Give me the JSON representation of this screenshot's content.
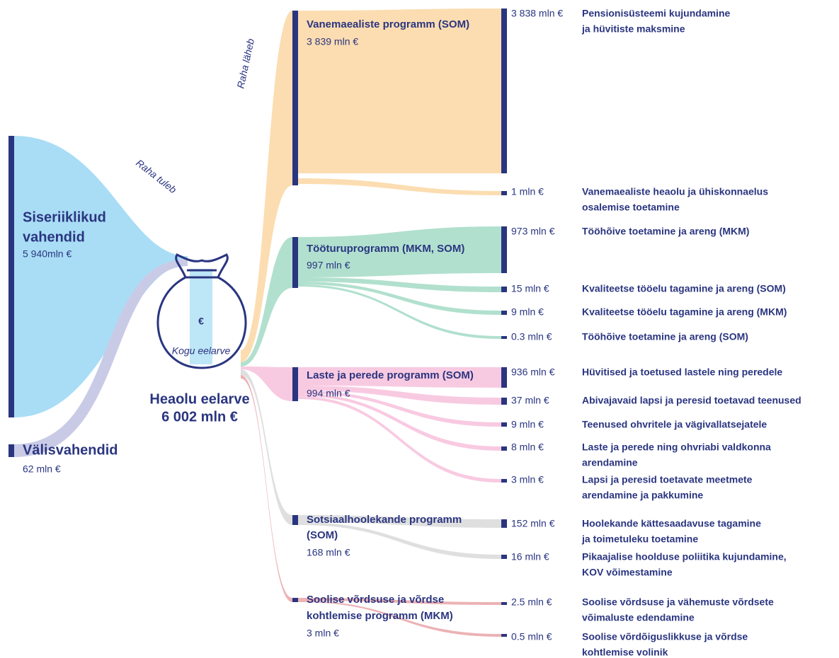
{
  "labels": {
    "incoming": "Raha tuleb",
    "outgoing": "Raha läheb"
  },
  "sources": [
    {
      "name": [
        "Siseriiklikud",
        "vahendid"
      ],
      "amount": "5 940mln €"
    },
    {
      "name": [
        "Välisvahendid"
      ],
      "amount": "62 mln €"
    }
  ],
  "budget": {
    "icon": "€",
    "caption": "Kogu eelarve",
    "title": "Heaolu eelarve",
    "amount": "6 002 mln €"
  },
  "programs": [
    {
      "name": [
        "Vanemaealiste programm (SOM)"
      ],
      "amount": "3 839 mln €",
      "items": [
        {
          "amount": "3 838 mln €",
          "name": [
            "Pensionisüsteemi kujundamine",
            "ja hüvitiste maksmine"
          ]
        },
        {
          "amount": "1 mln €",
          "name": [
            "Vanemaealiste heaolu ja ühiskonnaelus",
            "osalemise toetamine"
          ]
        }
      ]
    },
    {
      "name": [
        "Tööturuprogramm (MKM, SOM)"
      ],
      "amount": "997 mln €",
      "items": [
        {
          "amount": "973 mln €",
          "name": [
            "Tööhõive toetamine ja areng (MKM)"
          ]
        },
        {
          "amount": "15 mln €",
          "name": [
            "Kvaliteetse tööelu tagamine ja areng (SOM)"
          ]
        },
        {
          "amount": "9 mln €",
          "name": [
            "Kvaliteetse tööelu tagamine ja areng (MKM)"
          ]
        },
        {
          "amount": "0.3 mln €",
          "name": [
            "Tööhõive toetamine ja areng (SOM)"
          ]
        }
      ]
    },
    {
      "name": [
        "Laste ja perede programm (SOM)"
      ],
      "amount": "994 mln €",
      "items": [
        {
          "amount": "936 mln €",
          "name": [
            "Hüvitised ja toetused lastele ning peredele"
          ]
        },
        {
          "amount": "37 mln €",
          "name": [
            "Abivajavaid lapsi ja peresid toetavad teenused"
          ]
        },
        {
          "amount": "9 mln €",
          "name": [
            "Teenused ohvritele ja vägivallatsejatele"
          ]
        },
        {
          "amount": "8 mln €",
          "name": [
            "Laste ja perede ning ohvriabi valdkonna",
            "arendamine"
          ]
        },
        {
          "amount": "3 mln €",
          "name": [
            "Lapsi ja peresid toetavate meetmete",
            "arendamine ja pakkumine"
          ]
        }
      ]
    },
    {
      "name": [
        "Sotsiaalhoolekande programm",
        "(SOM)"
      ],
      "amount": "168 mln €",
      "items": [
        {
          "amount": "152 mln €",
          "name": [
            "Hoolekande kättesaadavuse tagamine",
            "ja toimetuleku toetamine"
          ]
        },
        {
          "amount": "16 mln €",
          "name": [
            "Pikaajalise hoolduse poliitika kujundamine,",
            "KOV võimestamine"
          ]
        }
      ]
    },
    {
      "name": [
        "Soolise võrdsuse ja võrdse",
        "kohtlemise programm (MKM)"
      ],
      "amount": "3 mln €",
      "items": [
        {
          "amount": "2.5 mln €",
          "name": [
            "Soolise võrdsuse ja vähemuste võrdsete",
            "võimaluste edendamine"
          ]
        },
        {
          "amount": "0.5 mln €",
          "name": [
            "Soolise võrdõiguslikkuse ja võrdse",
            "kohtlemise volinik"
          ]
        }
      ]
    }
  ]
}
